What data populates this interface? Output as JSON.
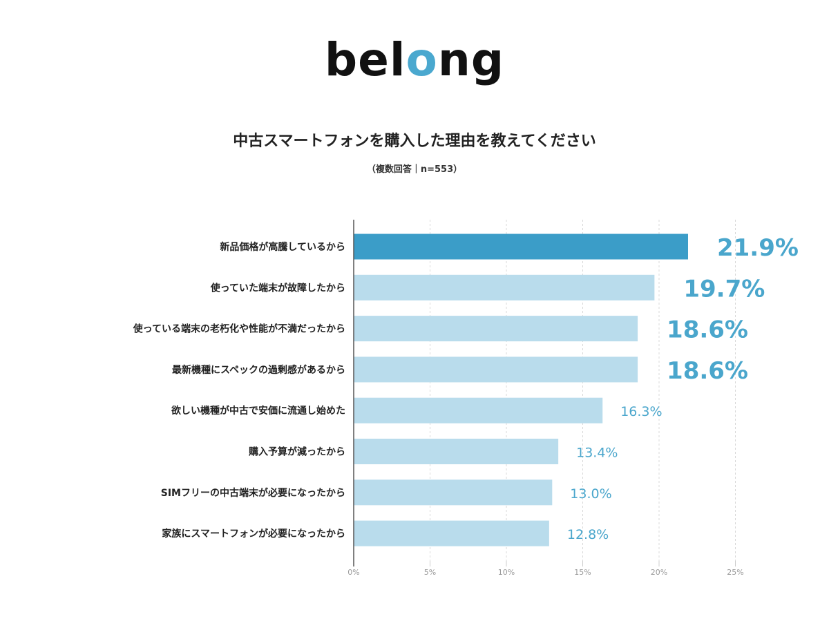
{
  "logo": {
    "text_before": "bel",
    "text_accent": "o",
    "text_after": "ng",
    "accent_color": "#4aa8cf"
  },
  "chart_data": {
    "type": "bar",
    "orientation": "horizontal",
    "title": "中古スマートフォンを購入した理由を教えてください",
    "subtitle": "（複数回答｜n=553）",
    "categories": [
      "新品価格が高騰しているから",
      "使っていた端末が故障したから",
      "使っている端末の老朽化や性能が不満だったから",
      "最新機種にスペックの過剰感があるから",
      "欲しい機種が中古で安価に流通し始めた",
      "購入予算が減ったから",
      "SIMフリーの中古端末が必要になったから",
      "家族にスマートフォンが必要になったから"
    ],
    "values": [
      21.9,
      19.7,
      18.6,
      18.6,
      16.3,
      13.4,
      13.0,
      12.8
    ],
    "value_labels": [
      "21.9%",
      "19.7%",
      "18.6%",
      "18.6%",
      "16.3%",
      "13.4%",
      "13.0%",
      "12.8%"
    ],
    "xlim": [
      0,
      25
    ],
    "x_ticks": [
      0,
      5,
      10,
      15,
      20,
      25
    ],
    "x_tick_labels": [
      "0%",
      "5%",
      "10%",
      "15%",
      "20%",
      "25%"
    ],
    "grid": true,
    "colors": {
      "highlight": "#3b9dc8",
      "bar": "#b9dcec",
      "value_label": "#4aa6cc"
    }
  }
}
